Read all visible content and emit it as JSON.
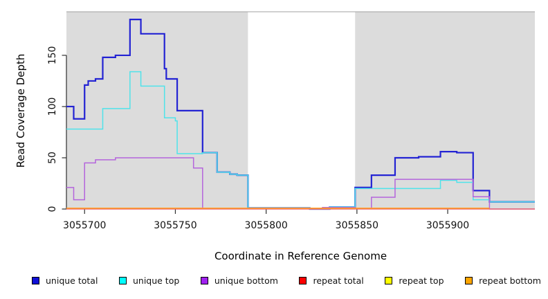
{
  "chart_data": {
    "type": "line",
    "subtype": "step-coverage-plot",
    "title": "",
    "xlabel": "Coordinate in Reference Genome",
    "ylabel": "Read Coverage Depth",
    "xlim": [
      3055690,
      3055948
    ],
    "ylim": [
      0,
      192.5
    ],
    "x_ticks": [
      3055700,
      3055750,
      3055800,
      3055850,
      3055900
    ],
    "y_ticks": [
      0,
      50,
      100,
      150
    ],
    "grid": false,
    "legend_position": "bottom",
    "plot_background": "#FFFFFF",
    "region_border_color": "#A0A0A0",
    "background_regions": [
      {
        "name": "unique-region-left",
        "x0": 3055690,
        "x1": 3055790,
        "color": "#DCDCDC"
      },
      {
        "name": "repeat-gap",
        "x0": 3055790,
        "x1": 3055849,
        "color": "#FFFFFF"
      },
      {
        "name": "unique-region-right",
        "x0": 3055849,
        "x1": 3055948,
        "color": "#DCDCDC"
      }
    ],
    "series": [
      {
        "name": "unique total",
        "color": "#0F0FD6",
        "line_color": "#2323D3",
        "width": 2.2,
        "points": [
          [
            3055690,
            100
          ],
          [
            3055694,
            88
          ],
          [
            3055700,
            121
          ],
          [
            3055702,
            125
          ],
          [
            3055706,
            127
          ],
          [
            3055710,
            148
          ],
          [
            3055717,
            150
          ],
          [
            3055725,
            185
          ],
          [
            3055731,
            171
          ],
          [
            3055744,
            137
          ],
          [
            3055745,
            127
          ],
          [
            3055751,
            96
          ],
          [
            3055765,
            55
          ],
          [
            3055773,
            36
          ],
          [
            3055780,
            34
          ],
          [
            3055784,
            33
          ],
          [
            3055790,
            1
          ],
          [
            3055824,
            0
          ],
          [
            3055835,
            2
          ],
          [
            3055849,
            21
          ],
          [
            3055858,
            33
          ],
          [
            3055871,
            50
          ],
          [
            3055884,
            51
          ],
          [
            3055896,
            56
          ],
          [
            3055905,
            55
          ],
          [
            3055914,
            18
          ],
          [
            3055923,
            7
          ],
          [
            3055948,
            7
          ]
        ]
      },
      {
        "name": "unique top",
        "color": "#00FFFF",
        "line_color": "#4FE3EA",
        "width": 1.5,
        "points": [
          [
            3055690,
            78
          ],
          [
            3055710,
            98
          ],
          [
            3055725,
            134
          ],
          [
            3055731,
            120
          ],
          [
            3055744,
            89
          ],
          [
            3055750,
            86
          ],
          [
            3055751,
            54
          ],
          [
            3055765,
            55
          ],
          [
            3055773,
            36
          ],
          [
            3055780,
            34
          ],
          [
            3055784,
            33
          ],
          [
            3055790,
            1
          ],
          [
            3055824,
            0
          ],
          [
            3055835,
            2
          ],
          [
            3055849,
            20
          ],
          [
            3055896,
            28
          ],
          [
            3055905,
            26
          ],
          [
            3055914,
            9
          ],
          [
            3055923,
            7
          ],
          [
            3055948,
            7
          ]
        ]
      },
      {
        "name": "unique bottom",
        "color": "#A020F0",
        "line_color": "#B464DC",
        "width": 1.5,
        "points": [
          [
            3055690,
            21
          ],
          [
            3055694,
            9
          ],
          [
            3055700,
            45
          ],
          [
            3055706,
            48
          ],
          [
            3055717,
            50
          ],
          [
            3055760,
            40
          ],
          [
            3055765,
            0.2
          ],
          [
            3055831,
            1.5
          ],
          [
            3055849,
            0.3
          ],
          [
            3055858,
            11.5
          ],
          [
            3055871,
            29
          ],
          [
            3055914,
            12
          ],
          [
            3055923,
            0
          ],
          [
            3055948,
            0
          ]
        ]
      },
      {
        "name": "repeat total",
        "color": "#FF0000",
        "line_color": "#E8547E",
        "width": 1.3,
        "points": [
          [
            3055690,
            0
          ],
          [
            3055948,
            0
          ]
        ]
      },
      {
        "name": "repeat top",
        "color": "#FFFF00",
        "line_color": "#FFE800",
        "width": 1.3,
        "points": [
          [
            3055690,
            0
          ],
          [
            3055948,
            0
          ]
        ]
      },
      {
        "name": "repeat bottom",
        "color": "#FFA500",
        "line_color": "#FFA228",
        "width": 1.6,
        "points": [
          [
            3055690,
            0.8
          ],
          [
            3055923,
            0.8
          ]
        ]
      }
    ]
  }
}
